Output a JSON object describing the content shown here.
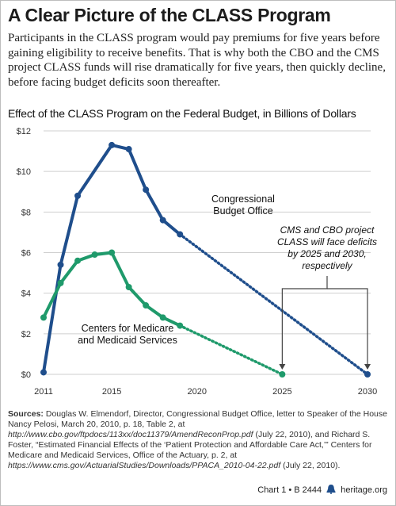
{
  "title": "A Clear Picture of the CLASS Program",
  "intro": "Participants in the CLASS program would pay premiums for five years before gaining eligibility to receive benefits. That is why both the CBO and the CMS project CLASS funds will rise dramatically for five years, then quickly decline, before facing budget deficits soon thereafter.",
  "chart_data": {
    "type": "line",
    "title": "Effect of the CLASS Program on the Federal Budget, in Billions of Dollars",
    "xlabel": "",
    "ylabel": "",
    "xlim": [
      2011,
      2030
    ],
    "ylim": [
      0,
      12
    ],
    "x_ticks": [
      "2011",
      "2015",
      "2020",
      "2025",
      "2030"
    ],
    "y_ticks": [
      "$0",
      "$2",
      "$4",
      "$6",
      "$8",
      "$10",
      "$12"
    ],
    "grid": true,
    "colors": {
      "cbo": "#1f4e8c",
      "cms": "#1f9a6b"
    },
    "series": [
      {
        "name": "Congressional Budget Office",
        "label_lines": [
          "Congressional",
          "Budget Office"
        ],
        "points": [
          [
            2011,
            0.1
          ],
          [
            2012,
            5.4
          ],
          [
            2013,
            8.8
          ],
          [
            2015,
            11.3
          ],
          [
            2016,
            11.1
          ],
          [
            2017,
            9.1
          ],
          [
            2018,
            7.6
          ],
          [
            2019,
            6.9
          ]
        ],
        "projected": [
          [
            2019,
            6.9
          ],
          [
            2030,
            0.0
          ]
        ]
      },
      {
        "name": "Centers for Medicare and Medicaid Services",
        "label_lines": [
          "Centers for Medicare",
          "and Medicaid Services"
        ],
        "points": [
          [
            2011,
            2.8
          ],
          [
            2012,
            4.5
          ],
          [
            2013,
            5.6
          ],
          [
            2014,
            5.9
          ],
          [
            2015,
            6.0
          ],
          [
            2016,
            4.3
          ],
          [
            2017,
            3.4
          ],
          [
            2018,
            2.8
          ],
          [
            2019,
            2.4
          ]
        ],
        "projected": [
          [
            2019,
            2.4
          ],
          [
            2025,
            0.0
          ]
        ]
      }
    ],
    "annotation": [
      "CMS and CBO project",
      "CLASS will face deficits",
      "by 2025 and 2030,",
      "respectively"
    ]
  },
  "sources": {
    "label": "Sources:",
    "part1": "Douglas W. Elmendorf, Director, Congressional Budget Office, letter to Speaker of the House Nancy Pelosi, March 20, 2010, p. 18, Table 2, at ",
    "url1": "http://www.cbo.gov/ftpdocs/113xx/doc11379/AmendReconProp.pdf",
    "part2": " (July 22, 2010), and Richard S. Foster, “Estimated Financial Effects of the ‘Patient Protection and Affordable Care Act,’” Centers for Medicare and Medicaid Services, Office of the Actuary, p. 2, at ",
    "url2": "https://www.cms.gov/ActuarialStudies/Downloads/PPACA_2010-04-22.pdf",
    "part3": " (July 22, 2010)."
  },
  "footer": {
    "chart_id": "Chart 1 • B 2444",
    "site": "heritage.org"
  }
}
